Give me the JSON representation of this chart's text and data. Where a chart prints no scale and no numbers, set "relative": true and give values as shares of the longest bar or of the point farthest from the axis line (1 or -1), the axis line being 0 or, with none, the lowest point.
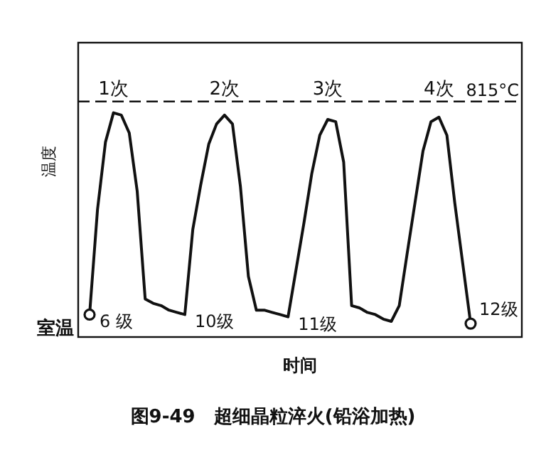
{
  "chart_data": {
    "type": "line",
    "relative": true,
    "title": "图9-49　超细晶粒淬火(铅浴加热)",
    "xlabel": "时间",
    "ylabel": "温度",
    "categories": [
      null,
      null,
      null,
      null,
      null,
      null,
      null,
      null,
      null,
      null,
      null,
      null,
      null,
      null,
      null,
      null,
      null,
      null,
      null,
      null,
      null,
      null,
      null,
      null,
      null,
      null,
      null,
      null,
      null,
      null,
      null,
      null,
      null,
      null,
      null,
      null,
      null,
      null,
      null,
      null,
      null,
      null,
      null,
      null,
      null,
      null,
      null,
      null,
      null
    ],
    "series": [
      {
        "color": "#111111",
        "values": [
          0.1,
          0.57,
          0.87,
          1.0,
          0.99,
          0.91,
          0.65,
          0.17,
          0.15,
          0.14,
          0.12,
          0.11,
          0.1,
          0.48,
          0.68,
          0.86,
          0.95,
          0.99,
          0.95,
          0.67,
          0.27,
          0.12,
          0.12,
          0.11,
          0.1,
          0.09,
          0.3,
          0.51,
          0.73,
          0.9,
          0.97,
          0.96,
          0.78,
          0.14,
          0.13,
          0.11,
          0.1,
          0.08,
          0.07,
          0.14,
          0.37,
          0.6,
          0.83,
          0.96,
          0.98,
          0.9,
          0.6,
          0.33,
          0.06
        ]
      }
    ],
    "ref_lines": [
      {
        "axis": "y",
        "value": 1.05,
        "label": "815°C",
        "line_style": "dashed",
        "color": "#111111"
      }
    ],
    "annotations": [
      "1次",
      "2次",
      "3次",
      "4次",
      "室温",
      "6 级",
      "10级",
      "11级",
      "12级"
    ]
  }
}
